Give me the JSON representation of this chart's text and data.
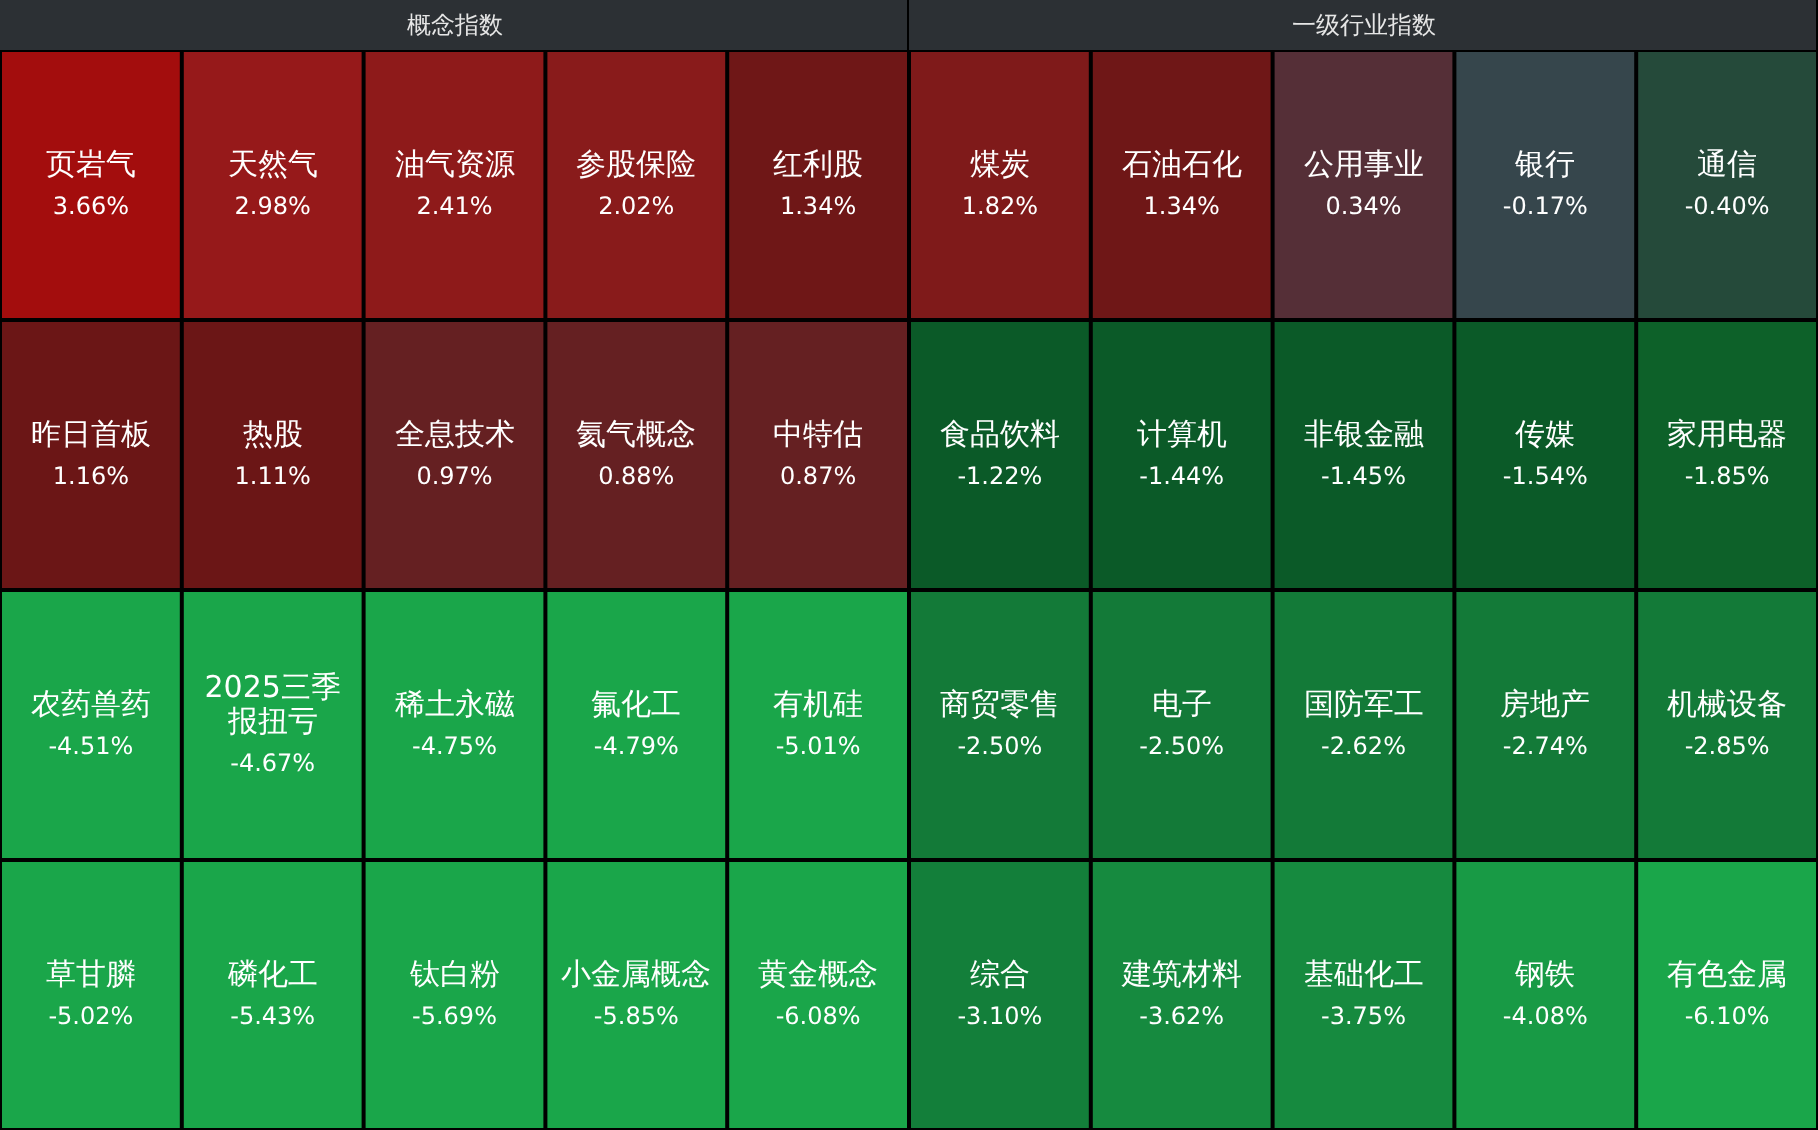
{
  "chart_data": [
    {
      "type": "other",
      "title": "概念指数",
      "categories": [
        "页岩气",
        "天然气",
        "油气资源",
        "参股保险",
        "红利股",
        "昨日首板",
        "热股",
        "全息技术",
        "氦气概念",
        "中特估",
        "农药兽药",
        "2025三季报扭亏",
        "稀土永磁",
        "氟化工",
        "有机硅",
        "草甘膦",
        "磷化工",
        "钛白粉",
        "小金属概念",
        "黄金概念"
      ],
      "values": [
        3.66,
        2.98,
        2.41,
        2.02,
        1.34,
        1.16,
        1.11,
        0.97,
        0.88,
        0.87,
        -4.51,
        -4.67,
        -4.75,
        -4.79,
        -5.01,
        -5.02,
        -5.43,
        -5.69,
        -5.85,
        -6.08
      ],
      "value_labels": [
        "3.66%",
        "2.98%",
        "2.41%",
        "2.02%",
        "1.34%",
        "1.16%",
        "1.11%",
        "0.97%",
        "0.88%",
        "0.87%",
        "-4.51%",
        "-4.67%",
        "-4.75%",
        "-4.79%",
        "-5.01%",
        "-5.02%",
        "-5.43%",
        "-5.69%",
        "-5.85%",
        "-6.08%"
      ],
      "colors": [
        "#a30d0d",
        "#96191a",
        "#8e1a1a",
        "#891b1b",
        "#6f1717",
        "#6b1616",
        "#6b1616",
        "#652022",
        "#652022",
        "#652022",
        "#1aa64a",
        "#1aa64a",
        "#1aa64a",
        "#1aa64a",
        "#1aa64a",
        "#1aa64a",
        "#1aa64a",
        "#1aa64a",
        "#1aa64a",
        "#1aa64a"
      ]
    },
    {
      "type": "other",
      "title": "一级行业指数",
      "categories": [
        "煤炭",
        "石油石化",
        "公用事业",
        "银行",
        "通信",
        "食品饮料",
        "计算机",
        "非银金融",
        "传媒",
        "家用电器",
        "商贸零售",
        "电子",
        "国防军工",
        "房地产",
        "机械设备",
        "综合",
        "建筑材料",
        "基础化工",
        "钢铁",
        "有色金属"
      ],
      "values": [
        1.82,
        1.34,
        0.34,
        -0.17,
        -0.4,
        -1.22,
        -1.44,
        -1.45,
        -1.54,
        -1.85,
        -2.5,
        -2.5,
        -2.62,
        -2.74,
        -2.85,
        -3.1,
        -3.62,
        -3.75,
        -4.08,
        -6.1
      ],
      "value_labels": [
        "1.82%",
        "1.34%",
        "0.34%",
        "-0.17%",
        "-0.40%",
        "-1.22%",
        "-1.44%",
        "-1.45%",
        "-1.54%",
        "-1.85%",
        "-2.50%",
        "-2.50%",
        "-2.62%",
        "-2.74%",
        "-2.85%",
        "-3.10%",
        "-3.62%",
        "-3.75%",
        "-4.08%",
        "-6.10%"
      ],
      "colors": [
        "#7f1a1a",
        "#6f1717",
        "#552f37",
        "#36464c",
        "#254a3a",
        "#0b5a28",
        "#0b5a28",
        "#0b5a28",
        "#0b5a28",
        "#0d6129",
        "#137a38",
        "#137a38",
        "#137a38",
        "#137a38",
        "#137a38",
        "#137f3a",
        "#168a3f",
        "#168a3f",
        "#189a45",
        "#1aa64a"
      ]
    }
  ]
}
